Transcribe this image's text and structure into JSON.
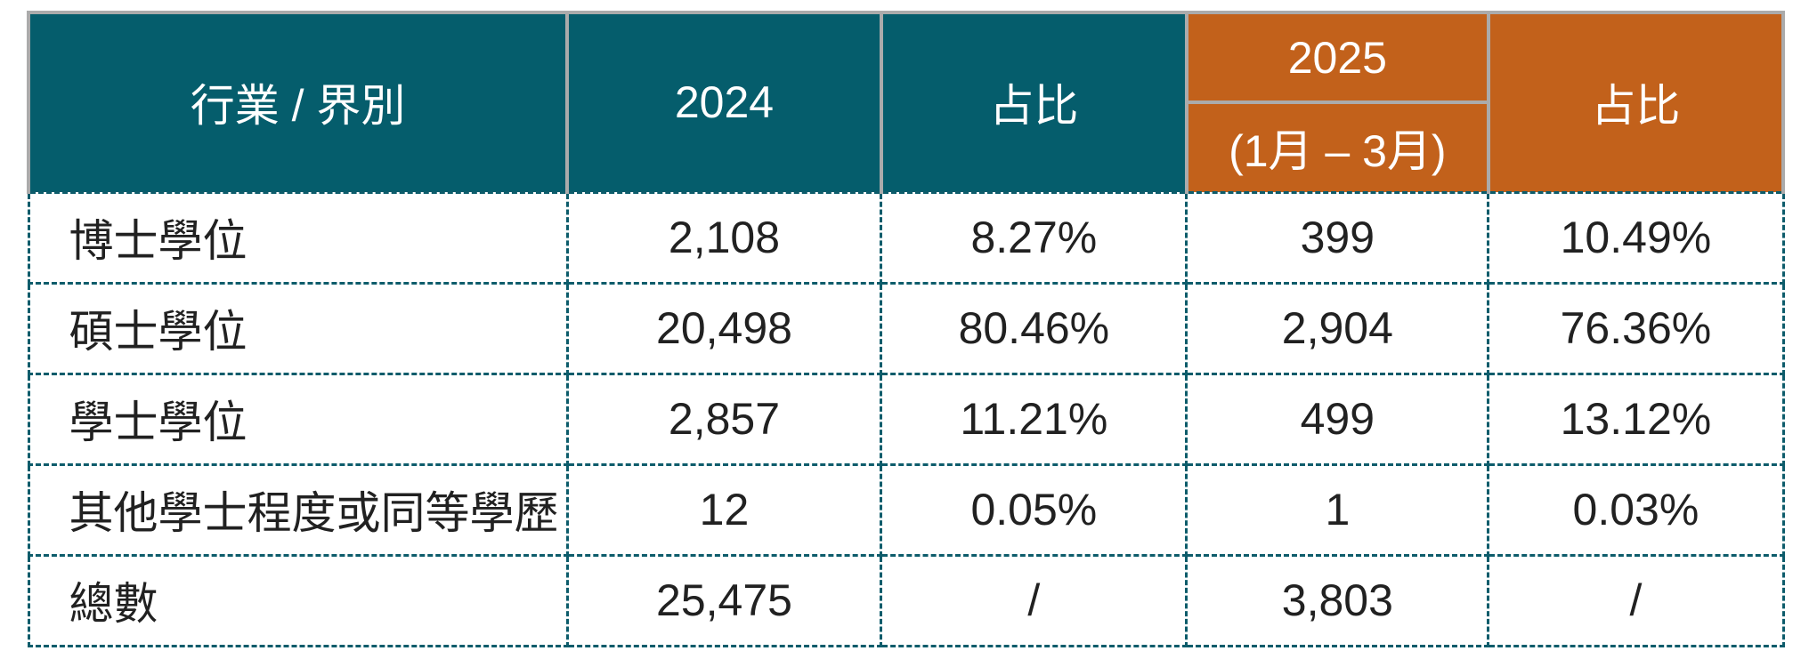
{
  "table": {
    "header": {
      "industry_label": "行業 / 界別",
      "year_2024": "2024",
      "share_2024": "占比",
      "year_2025": "2025",
      "period_2025": "(1月 – 3月)",
      "share_2025": "占比"
    },
    "rows": [
      {
        "label": "博士學位",
        "count_2024": "2,108",
        "share_2024": "8.27%",
        "count_2025": "399",
        "share_2025": "10.49%"
      },
      {
        "label": "碩士學位",
        "count_2024": "20,498",
        "share_2024": "80.46%",
        "count_2025": "2,904",
        "share_2025": "76.36%"
      },
      {
        "label": "學士學位",
        "count_2024": "2,857",
        "share_2024": "11.21%",
        "count_2025": "499",
        "share_2025": "13.12%"
      },
      {
        "label": "其他學士程度或同等學歷",
        "count_2024": "12",
        "share_2024": "0.05%",
        "count_2025": "1",
        "share_2025": "0.03%"
      },
      {
        "label": "總數",
        "count_2024": "25,475",
        "share_2024": "/",
        "count_2025": "3,803",
        "share_2025": "/"
      }
    ],
    "colors": {
      "header_teal": "#055d6c",
      "header_orange": "#c2611b",
      "header_border_gray": "#ababab",
      "dashed_border_teal": "#0d5c6b",
      "data_text": "#212121",
      "header_text": "#ffffff"
    }
  }
}
